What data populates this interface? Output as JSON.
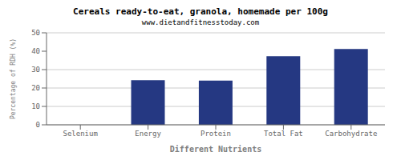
{
  "chart_data": {
    "type": "bar",
    "title": "Cereals ready-to-eat, granola, homemade per 100g",
    "subtitle": "www.dietandfitnesstoday.com",
    "xlabel": "Different Nutrients",
    "ylabel": "Percentage of RDH (%)",
    "categories": [
      "Selenium",
      "Energy",
      "Protein",
      "Total Fat",
      "Carbohydrate"
    ],
    "values": [
      0.0,
      24.2,
      24.0,
      37.3,
      41.2
    ],
    "color": "#253882",
    "ylim": [
      0,
      50
    ],
    "yticks": [
      0,
      10,
      20,
      30,
      40,
      50
    ],
    "grid": true
  }
}
